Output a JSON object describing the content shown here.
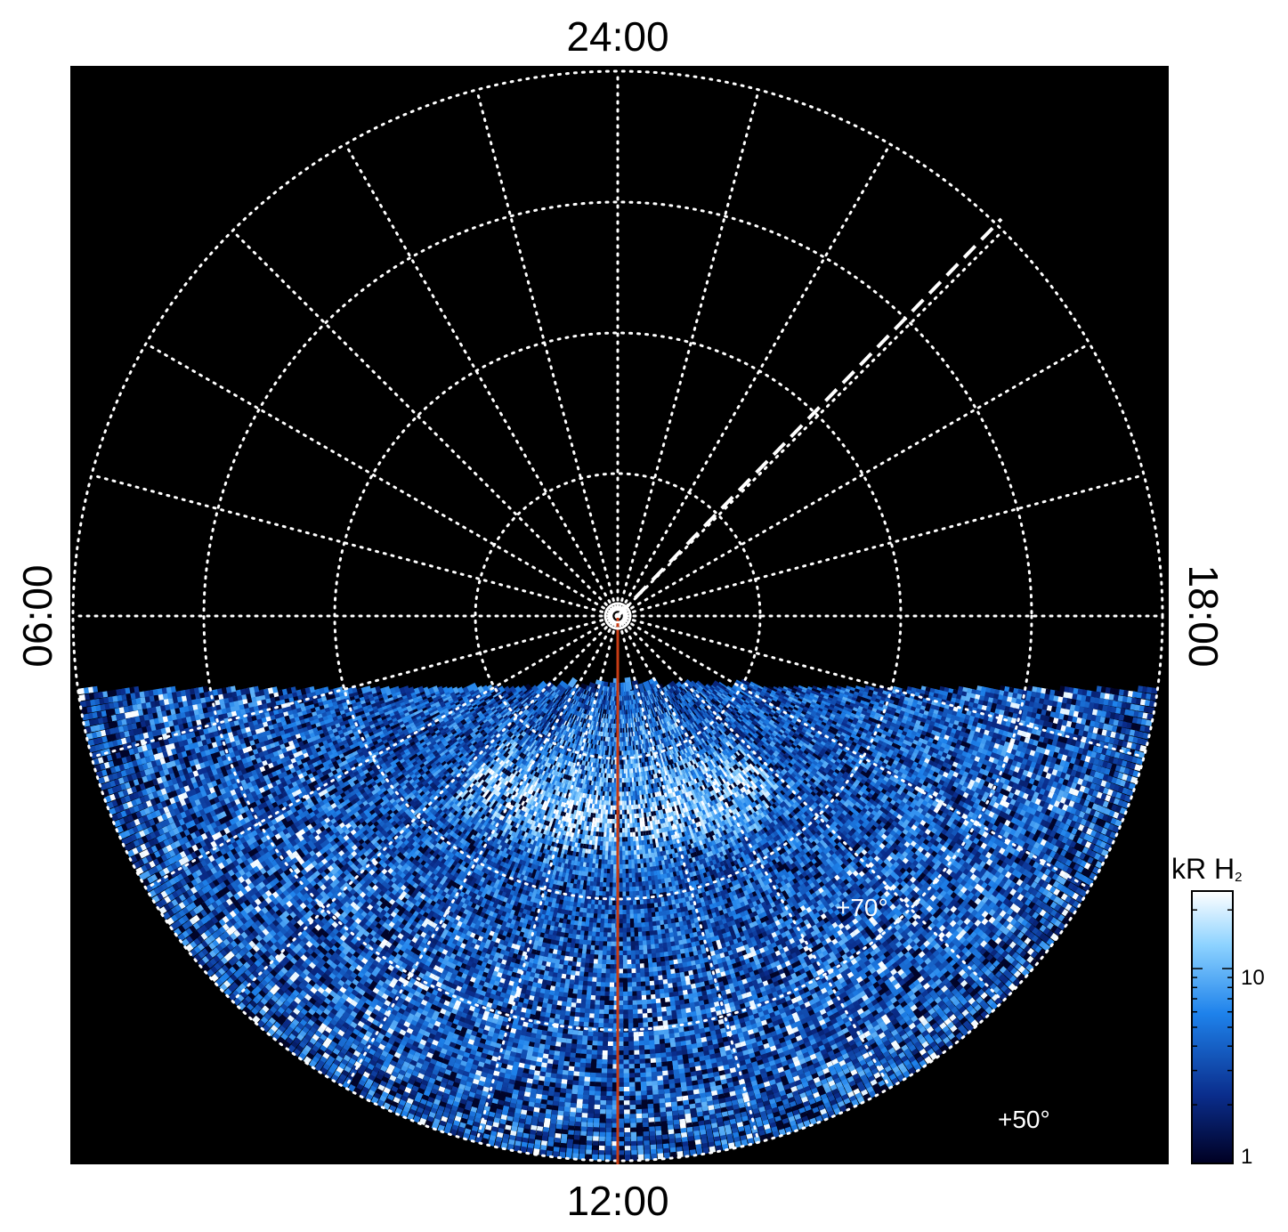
{
  "figure": {
    "local_time_labels": {
      "top": "24:00",
      "bottom": "12:00",
      "left": "06:00",
      "right": "18:00"
    },
    "latitude_labels": [
      "+70°",
      "+50°"
    ],
    "colorbar": {
      "title_main": "kR H",
      "title_sub": "2",
      "scale": "log",
      "min": 1,
      "max": 25,
      "tick_labels": [
        "10",
        "1"
      ],
      "colors": [
        "#000022",
        "#0a2d8c",
        "#1e82eb",
        "#8cd2ff",
        "#ffffff"
      ]
    },
    "colors": {
      "background": "#000000",
      "grid": "#ffffff",
      "meridian_line": "#c83c14"
    }
  }
}
